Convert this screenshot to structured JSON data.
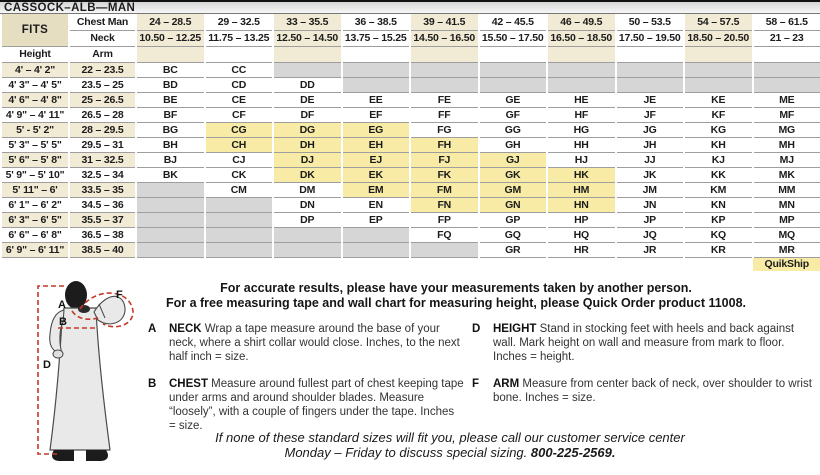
{
  "title": "CASSOCK–ALB—MAN",
  "colors": {
    "cream": "#f1ead4",
    "khaki": "#e5dec1",
    "quickship_yellow": "#f7eba6",
    "unavailable_gray": "#d6d6d6",
    "measure_line_red": "#c43a28"
  },
  "table": {
    "fits_label": "FITS",
    "chest_header": "Chest Man",
    "neck_header": "Neck",
    "height_header": "Height",
    "arm_header": "Arm",
    "columns": [
      {
        "chest": "24 – 28.5",
        "neck": "10.50 – 12.25"
      },
      {
        "chest": "29 – 32.5",
        "neck": "11.75 – 13.25"
      },
      {
        "chest": "33 – 35.5",
        "neck": "12.50 – 14.50"
      },
      {
        "chest": "36 – 38.5",
        "neck": "13.75 – 15.25"
      },
      {
        "chest": "39 – 41.5",
        "neck": "14.50 – 16.50"
      },
      {
        "chest": "42 – 45.5",
        "neck": "15.50 – 17.50"
      },
      {
        "chest": "46 – 49.5",
        "neck": "16.50 – 18.50"
      },
      {
        "chest": "50 – 53.5",
        "neck": "17.50 – 19.50"
      },
      {
        "chest": "54 – 57.5",
        "neck": "18.50 – 20.50"
      },
      {
        "chest": "58 – 61.5",
        "neck": "21 – 23"
      }
    ],
    "rows": [
      {
        "height": "4' – 4' 2\"",
        "arm": "22 – 23.5",
        "cells": [
          "BC",
          "CC",
          "",
          "",
          "",
          "",
          "",
          "",
          "",
          ""
        ]
      },
      {
        "height": "4' 3\" – 4' 5\"",
        "arm": "23.5 – 25",
        "cells": [
          "BD",
          "CD",
          "DD",
          "",
          "",
          "",
          "",
          "",
          "",
          ""
        ]
      },
      {
        "height": "4' 6\" – 4' 8\"",
        "arm": "25 – 26.5",
        "cells": [
          "BE",
          "CE",
          "DE",
          "EE",
          "FE",
          "GE",
          "HE",
          "JE",
          "KE",
          "ME"
        ]
      },
      {
        "height": "4' 9\" – 4' 11\"",
        "arm": "26.5 – 28",
        "cells": [
          "BF",
          "CF",
          "DF",
          "EF",
          "FF",
          "GF",
          "HF",
          "JF",
          "KF",
          "MF"
        ]
      },
      {
        "height": "5' - 5' 2\"",
        "arm": "28 – 29.5",
        "cells": [
          "BG",
          "CG",
          "DG",
          "EG",
          "FG",
          "GG",
          "HG",
          "JG",
          "KG",
          "MG"
        ]
      },
      {
        "height": "5' 3\" – 5' 5\"",
        "arm": "29.5 – 31",
        "cells": [
          "BH",
          "CH",
          "DH",
          "EH",
          "FH",
          "GH",
          "HH",
          "JH",
          "KH",
          "MH"
        ]
      },
      {
        "height": "5' 6\" – 5' 8\"",
        "arm": "31 – 32.5",
        "cells": [
          "BJ",
          "CJ",
          "DJ",
          "EJ",
          "FJ",
          "GJ",
          "HJ",
          "JJ",
          "KJ",
          "MJ"
        ]
      },
      {
        "height": "5' 9\" – 5' 10\"",
        "arm": "32.5 – 34",
        "cells": [
          "BK",
          "CK",
          "DK",
          "EK",
          "FK",
          "GK",
          "HK",
          "JK",
          "KK",
          "MK"
        ]
      },
      {
        "height": "5' 11\" – 6'",
        "arm": "33.5 – 35",
        "cells": [
          "",
          "CM",
          "DM",
          "EM",
          "FM",
          "GM",
          "HM",
          "JM",
          "KM",
          "MM"
        ]
      },
      {
        "height": "6' 1\" – 6' 2\"",
        "arm": "34.5 – 36",
        "cells": [
          "",
          "",
          "DN",
          "EN",
          "FN",
          "GN",
          "HN",
          "JN",
          "KN",
          "MN"
        ]
      },
      {
        "height": "6' 3\" – 6' 5\"",
        "arm": "35.5 – 37",
        "cells": [
          "",
          "",
          "DP",
          "EP",
          "FP",
          "GP",
          "HP",
          "JP",
          "KP",
          "MP"
        ]
      },
      {
        "height": "6' 6\" – 6' 8\"",
        "arm": "36.5 – 38",
        "cells": [
          "",
          "",
          "",
          "",
          "FQ",
          "GQ",
          "HQ",
          "JQ",
          "KQ",
          "MQ"
        ]
      },
      {
        "height": "6' 9\" – 6' 11\"",
        "arm": "38.5 – 40",
        "cells": [
          "",
          "",
          "",
          "",
          "",
          "GR",
          "HR",
          "JR",
          "KR",
          "MR"
        ]
      }
    ],
    "quickship_codes": [
      "CG",
      "CH",
      "DG",
      "DH",
      "DJ",
      "DK",
      "EG",
      "EH",
      "EJ",
      "EK",
      "EM",
      "FH",
      "FJ",
      "FK",
      "FM",
      "FN",
      "GJ",
      "GK",
      "GM",
      "GN",
      "HK",
      "HM",
      "HN"
    ],
    "quickship_label": "QuikShip"
  },
  "intro": {
    "line1": "For accurate results, please have your measurements taken by another person.",
    "line2": "For a free measuring tape and wall chart for measuring height, please Quick Order product 11008."
  },
  "instructions": {
    "left": [
      {
        "letter": "A",
        "term": "NECK",
        "text": "Wrap a tape measure around the base of your neck, where a shirt collar would close. Inches, to the next half inch = size."
      },
      {
        "letter": "B",
        "term": "CHEST",
        "text": "Measure around fullest part of chest keeping tape under arms and around shoulder blades. Measure “loosely”, with a couple of fingers under the tape. Inches = size."
      }
    ],
    "right": [
      {
        "letter": "D",
        "term": "HEIGHT",
        "text": "Stand in stocking feet with heels and back against wall. Mark height on wall and measure from mark to floor. Inches = height."
      },
      {
        "letter": "F",
        "term": "ARM",
        "text": "Measure from center back of neck, over shoulder to wrist bone. Inches = size."
      }
    ]
  },
  "footer": {
    "line1": "If none of these standard sizes will fit you, please call our customer service center",
    "line2": "Monday – Friday to discuss special sizing.",
    "phone": "800-225-2569."
  },
  "figure": {
    "labels": {
      "a": "A",
      "b": "B",
      "d": "D",
      "f": "F"
    }
  }
}
